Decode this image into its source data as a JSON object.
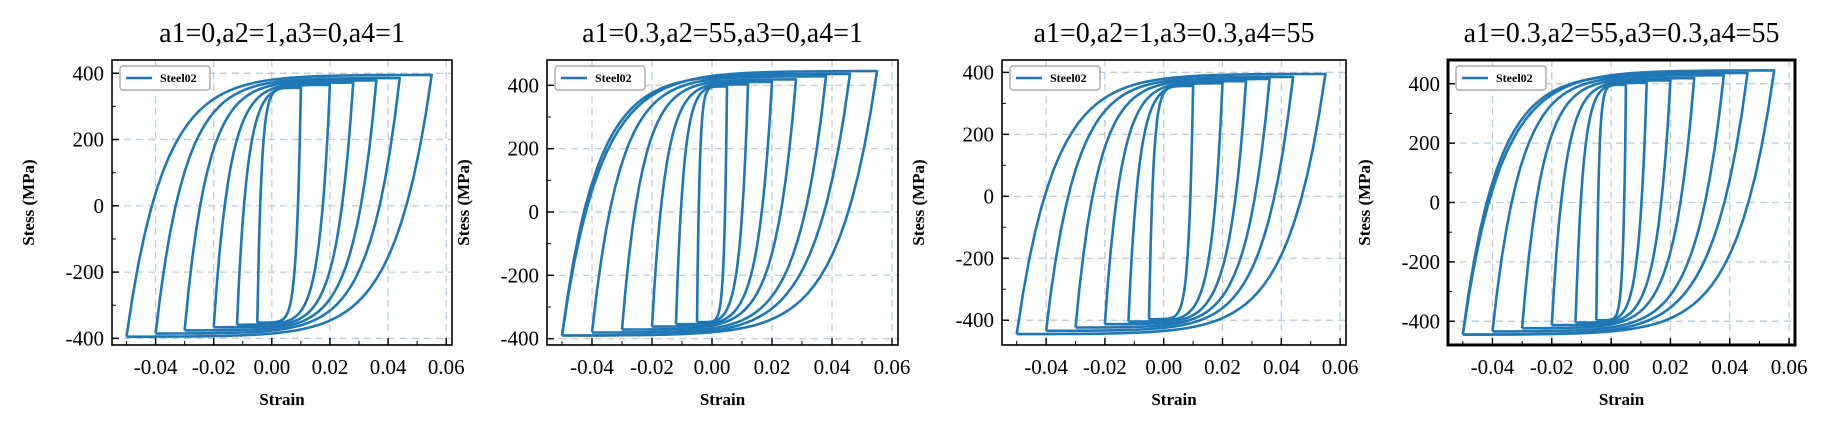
{
  "chart_data": [
    {
      "type": "line",
      "title": "a1=0,a2=1,a3=0,a4=1",
      "xlabel": "Strain",
      "ylabel": "Stess (MPa)",
      "xlim": [
        -0.055,
        0.062
      ],
      "ylim": [
        -420,
        440
      ],
      "xticks": [
        "-0.04",
        "-0.02",
        "0.00",
        "0.02",
        "0.04",
        "0.06"
      ],
      "xtick_values": [
        -0.04,
        -0.02,
        0.0,
        0.02,
        0.04,
        0.06
      ],
      "yticks": [
        "-400",
        "-200",
        "0",
        "200",
        "400"
      ],
      "ytick_values": [
        -400,
        -200,
        0,
        200,
        400
      ],
      "grid": true,
      "legend": "upper-left",
      "series": [
        {
          "name": "Steel02",
          "color": "#1f77b4"
        }
      ],
      "loop_max_strains": [
        0.01,
        0.02,
        0.028,
        0.036,
        0.044,
        0.055
      ],
      "loop_min_strains": [
        -0.005,
        -0.012,
        -0.02,
        -0.03,
        -0.04,
        -0.05
      ],
      "pos_peak_stress": 395,
      "neg_peak_stress": -395
    },
    {
      "type": "line",
      "title": "a1=0.3,a2=55,a3=0,a4=1",
      "xlabel": "Strain",
      "ylabel": "Stess (MPa)",
      "xlim": [
        -0.055,
        0.062
      ],
      "ylim": [
        -420,
        480
      ],
      "xticks": [
        "-0.04",
        "-0.02",
        "0.00",
        "0.02",
        "0.04",
        "0.06"
      ],
      "xtick_values": [
        -0.04,
        -0.02,
        0.0,
        0.02,
        0.04,
        0.06
      ],
      "yticks": [
        "-400",
        "-200",
        "0",
        "200",
        "400"
      ],
      "ytick_values": [
        -400,
        -200,
        0,
        200,
        400
      ],
      "grid": true,
      "legend": "upper-left",
      "series": [
        {
          "name": "Steel02",
          "color": "#1f77b4"
        }
      ],
      "loop_max_strains": [
        0.005,
        0.012,
        0.02,
        0.028,
        0.038,
        0.046,
        0.055
      ],
      "loop_min_strains": [
        -0.005,
        -0.012,
        -0.02,
        -0.03,
        -0.04,
        -0.05
      ],
      "pos_peak_stress": 445,
      "neg_peak_stress": -390
    },
    {
      "type": "line",
      "title": "a1=0,a2=1,a3=0.3,a4=55",
      "xlabel": "Strain",
      "ylabel": "Stess (MPa)",
      "xlim": [
        -0.055,
        0.062
      ],
      "ylim": [
        -480,
        440
      ],
      "xticks": [
        "-0.04",
        "-0.02",
        "0.00",
        "0.02",
        "0.04",
        "0.06"
      ],
      "xtick_values": [
        -0.04,
        -0.02,
        0.0,
        0.02,
        0.04,
        0.06
      ],
      "yticks": [
        "-400",
        "-200",
        "0",
        "200",
        "400"
      ],
      "ytick_values": [
        -400,
        -200,
        0,
        200,
        400
      ],
      "grid": true,
      "legend": "upper-left",
      "series": [
        {
          "name": "Steel02",
          "color": "#1f77b4"
        }
      ],
      "loop_max_strains": [
        0.01,
        0.02,
        0.028,
        0.036,
        0.044,
        0.055
      ],
      "loop_min_strains": [
        -0.005,
        -0.012,
        -0.02,
        -0.03,
        -0.04,
        -0.05
      ],
      "pos_peak_stress": 395,
      "neg_peak_stress": -445
    },
    {
      "type": "line",
      "title": "a1=0.3,a2=55,a3=0.3,a4=55",
      "xlabel": "Strain",
      "ylabel": "Stess (MPa)",
      "xlim": [
        -0.055,
        0.062
      ],
      "ylim": [
        -480,
        480
      ],
      "xticks": [
        "-0.04",
        "-0.02",
        "0.00",
        "0.02",
        "0.04",
        "0.06"
      ],
      "xtick_values": [
        -0.04,
        -0.02,
        0.0,
        0.02,
        0.04,
        0.06
      ],
      "yticks": [
        "-400",
        "-200",
        "0",
        "200",
        "400"
      ],
      "ytick_values": [
        -400,
        -200,
        0,
        200,
        400
      ],
      "grid": true,
      "legend": "upper-left",
      "series": [
        {
          "name": "Steel02",
          "color": "#1f77b4"
        }
      ],
      "loop_max_strains": [
        0.005,
        0.012,
        0.02,
        0.028,
        0.038,
        0.046,
        0.055
      ],
      "loop_min_strains": [
        -0.005,
        -0.012,
        -0.02,
        -0.03,
        -0.04,
        -0.05
      ],
      "pos_peak_stress": 445,
      "neg_peak_stress": -445
    }
  ]
}
